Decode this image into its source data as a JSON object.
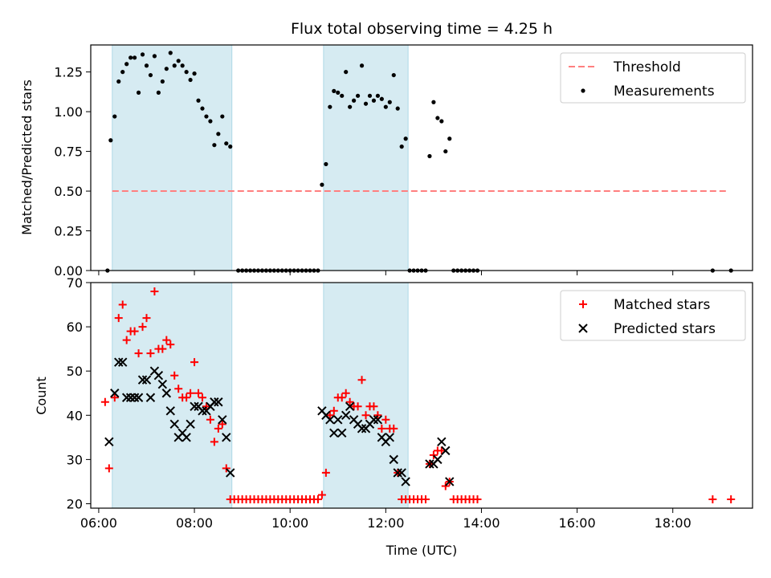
{
  "chart_data": [
    {
      "type": "scatter",
      "title": "Flux total observing time = 4.25 h",
      "xlabel": "",
      "ylabel": "Matched/Predicted stars",
      "xlim": [
        "05:50",
        "19:40"
      ],
      "ylim": [
        0,
        1.42
      ],
      "yticks": [
        "0.00",
        "0.25",
        "0.50",
        "0.75",
        "1.00",
        "1.25"
      ],
      "legend": {
        "placement": "upper right",
        "entries": [
          "Threshold",
          "Measurements"
        ]
      },
      "threshold": {
        "name": "Threshold",
        "value": 0.5,
        "x_start": "06:17",
        "x_end": "19:10",
        "color": "#ff7f7f"
      },
      "shaded_intervals": [
        [
          "06:17",
          "08:47"
        ],
        [
          "10:42",
          "12:28"
        ]
      ],
      "series": [
        {
          "name": "Measurements",
          "color": "#000000",
          "points": [
            [
              "06:11",
              0
            ],
            [
              "06:15",
              0.82
            ],
            [
              "06:20",
              0.97
            ],
            [
              "06:25",
              1.19
            ],
            [
              "06:30",
              1.25
            ],
            [
              "06:35",
              1.3
            ],
            [
              "06:40",
              1.34
            ],
            [
              "06:45",
              1.34
            ],
            [
              "06:50",
              1.12
            ],
            [
              "06:55",
              1.36
            ],
            [
              "07:00",
              1.29
            ],
            [
              "07:05",
              1.23
            ],
            [
              "07:10",
              1.35
            ],
            [
              "07:15",
              1.12
            ],
            [
              "07:20",
              1.19
            ],
            [
              "07:25",
              1.27
            ],
            [
              "07:30",
              1.37
            ],
            [
              "07:35",
              1.29
            ],
            [
              "07:40",
              1.32
            ],
            [
              "07:45",
              1.29
            ],
            [
              "07:50",
              1.25
            ],
            [
              "07:55",
              1.2
            ],
            [
              "08:00",
              1.24
            ],
            [
              "08:05",
              1.07
            ],
            [
              "08:10",
              1.02
            ],
            [
              "08:15",
              0.97
            ],
            [
              "08:20",
              0.94
            ],
            [
              "08:25",
              0.79
            ],
            [
              "08:30",
              0.86
            ],
            [
              "08:35",
              0.97
            ],
            [
              "08:40",
              0.8
            ],
            [
              "08:45",
              0.78
            ],
            [
              "08:55",
              0
            ],
            [
              "09:00",
              0
            ],
            [
              "09:05",
              0
            ],
            [
              "09:10",
              0
            ],
            [
              "09:15",
              0
            ],
            [
              "09:20",
              0
            ],
            [
              "09:25",
              0
            ],
            [
              "09:30",
              0
            ],
            [
              "09:35",
              0
            ],
            [
              "09:40",
              0
            ],
            [
              "09:45",
              0
            ],
            [
              "09:50",
              0
            ],
            [
              "09:55",
              0
            ],
            [
              "10:00",
              0
            ],
            [
              "10:05",
              0
            ],
            [
              "10:10",
              0
            ],
            [
              "10:15",
              0
            ],
            [
              "10:20",
              0
            ],
            [
              "10:25",
              0
            ],
            [
              "10:30",
              0
            ],
            [
              "10:35",
              0
            ],
            [
              "10:40",
              0.54
            ],
            [
              "10:45",
              0.67
            ],
            [
              "10:50",
              1.03
            ],
            [
              "10:55",
              1.13
            ],
            [
              "11:00",
              1.12
            ],
            [
              "11:05",
              1.1
            ],
            [
              "11:10",
              1.25
            ],
            [
              "11:15",
              1.03
            ],
            [
              "11:20",
              1.07
            ],
            [
              "11:25",
              1.1
            ],
            [
              "11:30",
              1.29
            ],
            [
              "11:35",
              1.05
            ],
            [
              "11:40",
              1.1
            ],
            [
              "11:45",
              1.07
            ],
            [
              "11:50",
              1.1
            ],
            [
              "11:55",
              1.08
            ],
            [
              "12:00",
              1.03
            ],
            [
              "12:05",
              1.06
            ],
            [
              "12:10",
              1.23
            ],
            [
              "12:15",
              1.02
            ],
            [
              "12:20",
              0.78
            ],
            [
              "12:25",
              0.83
            ],
            [
              "12:30",
              0
            ],
            [
              "12:35",
              0
            ],
            [
              "12:40",
              0
            ],
            [
              "12:45",
              0
            ],
            [
              "12:50",
              0
            ],
            [
              "12:55",
              0.72
            ],
            [
              "13:00",
              1.06
            ],
            [
              "13:05",
              0.96
            ],
            [
              "13:10",
              0.94
            ],
            [
              "13:15",
              0.75
            ],
            [
              "13:20",
              0.83
            ],
            [
              "13:25",
              0
            ],
            [
              "13:30",
              0
            ],
            [
              "13:35",
              0
            ],
            [
              "13:40",
              0
            ],
            [
              "13:45",
              0
            ],
            [
              "13:50",
              0
            ],
            [
              "13:55",
              0
            ],
            [
              "18:50",
              0
            ],
            [
              "19:13",
              0
            ]
          ]
        }
      ]
    },
    {
      "type": "scatter",
      "title": "",
      "xlabel": "Time (UTC)",
      "ylabel": "Count",
      "xlim": [
        "05:50",
        "19:40"
      ],
      "ylim": [
        19,
        70
      ],
      "xticks": [
        "06:00",
        "08:00",
        "10:00",
        "12:00",
        "14:00",
        "16:00",
        "18:00"
      ],
      "yticks": [
        "20",
        "30",
        "40",
        "50",
        "60",
        "70"
      ],
      "legend": {
        "placement": "upper right",
        "entries": [
          "Matched stars",
          "Predicted stars"
        ]
      },
      "shaded_intervals": [
        [
          "06:17",
          "08:47"
        ],
        [
          "10:42",
          "12:28"
        ]
      ],
      "series": [
        {
          "name": "Matched stars",
          "color": "#ff0000",
          "marker": "plus",
          "points": [
            [
              "06:08",
              43
            ],
            [
              "06:13",
              28
            ],
            [
              "06:20",
              44
            ],
            [
              "06:25",
              62
            ],
            [
              "06:30",
              65
            ],
            [
              "06:35",
              57
            ],
            [
              "06:40",
              59
            ],
            [
              "06:45",
              59
            ],
            [
              "06:50",
              54
            ],
            [
              "06:55",
              60
            ],
            [
              "07:00",
              62
            ],
            [
              "07:05",
              54
            ],
            [
              "07:10",
              68
            ],
            [
              "07:15",
              55
            ],
            [
              "07:20",
              55
            ],
            [
              "07:25",
              57
            ],
            [
              "07:30",
              56
            ],
            [
              "07:35",
              49
            ],
            [
              "07:40",
              46
            ],
            [
              "07:45",
              44
            ],
            [
              "07:50",
              44
            ],
            [
              "07:55",
              45
            ],
            [
              "08:00",
              52
            ],
            [
              "08:05",
              45
            ],
            [
              "08:10",
              44
            ],
            [
              "08:15",
              42
            ],
            [
              "08:20",
              39
            ],
            [
              "08:25",
              34
            ],
            [
              "08:30",
              37
            ],
            [
              "08:35",
              38
            ],
            [
              "08:40",
              28
            ],
            [
              "08:45",
              21
            ],
            [
              "08:50",
              21
            ],
            [
              "08:55",
              21
            ],
            [
              "09:00",
              21
            ],
            [
              "09:05",
              21
            ],
            [
              "09:10",
              21
            ],
            [
              "09:15",
              21
            ],
            [
              "09:20",
              21
            ],
            [
              "09:25",
              21
            ],
            [
              "09:30",
              21
            ],
            [
              "09:35",
              21
            ],
            [
              "09:40",
              21
            ],
            [
              "09:45",
              21
            ],
            [
              "09:50",
              21
            ],
            [
              "09:55",
              21
            ],
            [
              "10:00",
              21
            ],
            [
              "10:05",
              21
            ],
            [
              "10:10",
              21
            ],
            [
              "10:15",
              21
            ],
            [
              "10:20",
              21
            ],
            [
              "10:25",
              21
            ],
            [
              "10:30",
              21
            ],
            [
              "10:35",
              21
            ],
            [
              "10:40",
              22
            ],
            [
              "10:45",
              27
            ],
            [
              "10:50",
              40
            ],
            [
              "10:55",
              41
            ],
            [
              "11:00",
              44
            ],
            [
              "11:05",
              44
            ],
            [
              "11:10",
              45
            ],
            [
              "11:15",
              43
            ],
            [
              "11:20",
              42
            ],
            [
              "11:25",
              42
            ],
            [
              "11:30",
              48
            ],
            [
              "11:35",
              40
            ],
            [
              "11:40",
              42
            ],
            [
              "11:45",
              42
            ],
            [
              "11:50",
              40
            ],
            [
              "11:55",
              37
            ],
            [
              "12:00",
              39
            ],
            [
              "12:05",
              37
            ],
            [
              "12:10",
              37
            ],
            [
              "12:15",
              27
            ],
            [
              "12:20",
              21
            ],
            [
              "12:25",
              21
            ],
            [
              "12:30",
              21
            ],
            [
              "12:35",
              21
            ],
            [
              "12:40",
              21
            ],
            [
              "12:45",
              21
            ],
            [
              "12:50",
              21
            ],
            [
              "12:55",
              29
            ],
            [
              "13:00",
              31
            ],
            [
              "13:05",
              32
            ],
            [
              "13:10",
              32
            ],
            [
              "13:15",
              24
            ],
            [
              "13:20",
              25
            ],
            [
              "13:25",
              21
            ],
            [
              "13:30",
              21
            ],
            [
              "13:35",
              21
            ],
            [
              "13:40",
              21
            ],
            [
              "13:45",
              21
            ],
            [
              "13:50",
              21
            ],
            [
              "13:55",
              21
            ],
            [
              "18:50",
              21
            ],
            [
              "19:13",
              21
            ]
          ]
        },
        {
          "name": "Predicted stars",
          "color": "#000000",
          "marker": "x",
          "points": [
            [
              "06:13",
              34
            ],
            [
              "06:20",
              45
            ],
            [
              "06:25",
              52
            ],
            [
              "06:30",
              52
            ],
            [
              "06:35",
              44
            ],
            [
              "06:40",
              44
            ],
            [
              "06:45",
              44
            ],
            [
              "06:50",
              44
            ],
            [
              "06:55",
              48
            ],
            [
              "07:00",
              48
            ],
            [
              "07:05",
              44
            ],
            [
              "07:10",
              50
            ],
            [
              "07:15",
              49
            ],
            [
              "07:20",
              47
            ],
            [
              "07:25",
              45
            ],
            [
              "07:30",
              41
            ],
            [
              "07:35",
              38
            ],
            [
              "07:40",
              35
            ],
            [
              "07:45",
              36
            ],
            [
              "07:50",
              35
            ],
            [
              "07:55",
              38
            ],
            [
              "08:00",
              42
            ],
            [
              "08:05",
              42
            ],
            [
              "08:10",
              41
            ],
            [
              "08:15",
              41
            ],
            [
              "08:20",
              42
            ],
            [
              "08:25",
              43
            ],
            [
              "08:30",
              43
            ],
            [
              "08:35",
              39
            ],
            [
              "08:40",
              35
            ],
            [
              "08:45",
              27
            ],
            [
              "10:40",
              41
            ],
            [
              "10:45",
              40
            ],
            [
              "10:50",
              39
            ],
            [
              "10:55",
              36
            ],
            [
              "11:00",
              39
            ],
            [
              "11:05",
              36
            ],
            [
              "11:10",
              40
            ],
            [
              "11:15",
              42
            ],
            [
              "11:20",
              39
            ],
            [
              "11:25",
              38
            ],
            [
              "11:30",
              37
            ],
            [
              "11:35",
              37
            ],
            [
              "11:40",
              38
            ],
            [
              "11:45",
              39
            ],
            [
              "11:50",
              39
            ],
            [
              "11:55",
              35
            ],
            [
              "12:00",
              34
            ],
            [
              "12:05",
              35
            ],
            [
              "12:10",
              30
            ],
            [
              "12:15",
              27
            ],
            [
              "12:20",
              27
            ],
            [
              "12:25",
              25
            ],
            [
              "12:55",
              29
            ],
            [
              "13:00",
              29
            ],
            [
              "13:05",
              30
            ],
            [
              "13:10",
              34
            ],
            [
              "13:15",
              32
            ],
            [
              "13:20",
              25
            ]
          ]
        }
      ]
    }
  ]
}
